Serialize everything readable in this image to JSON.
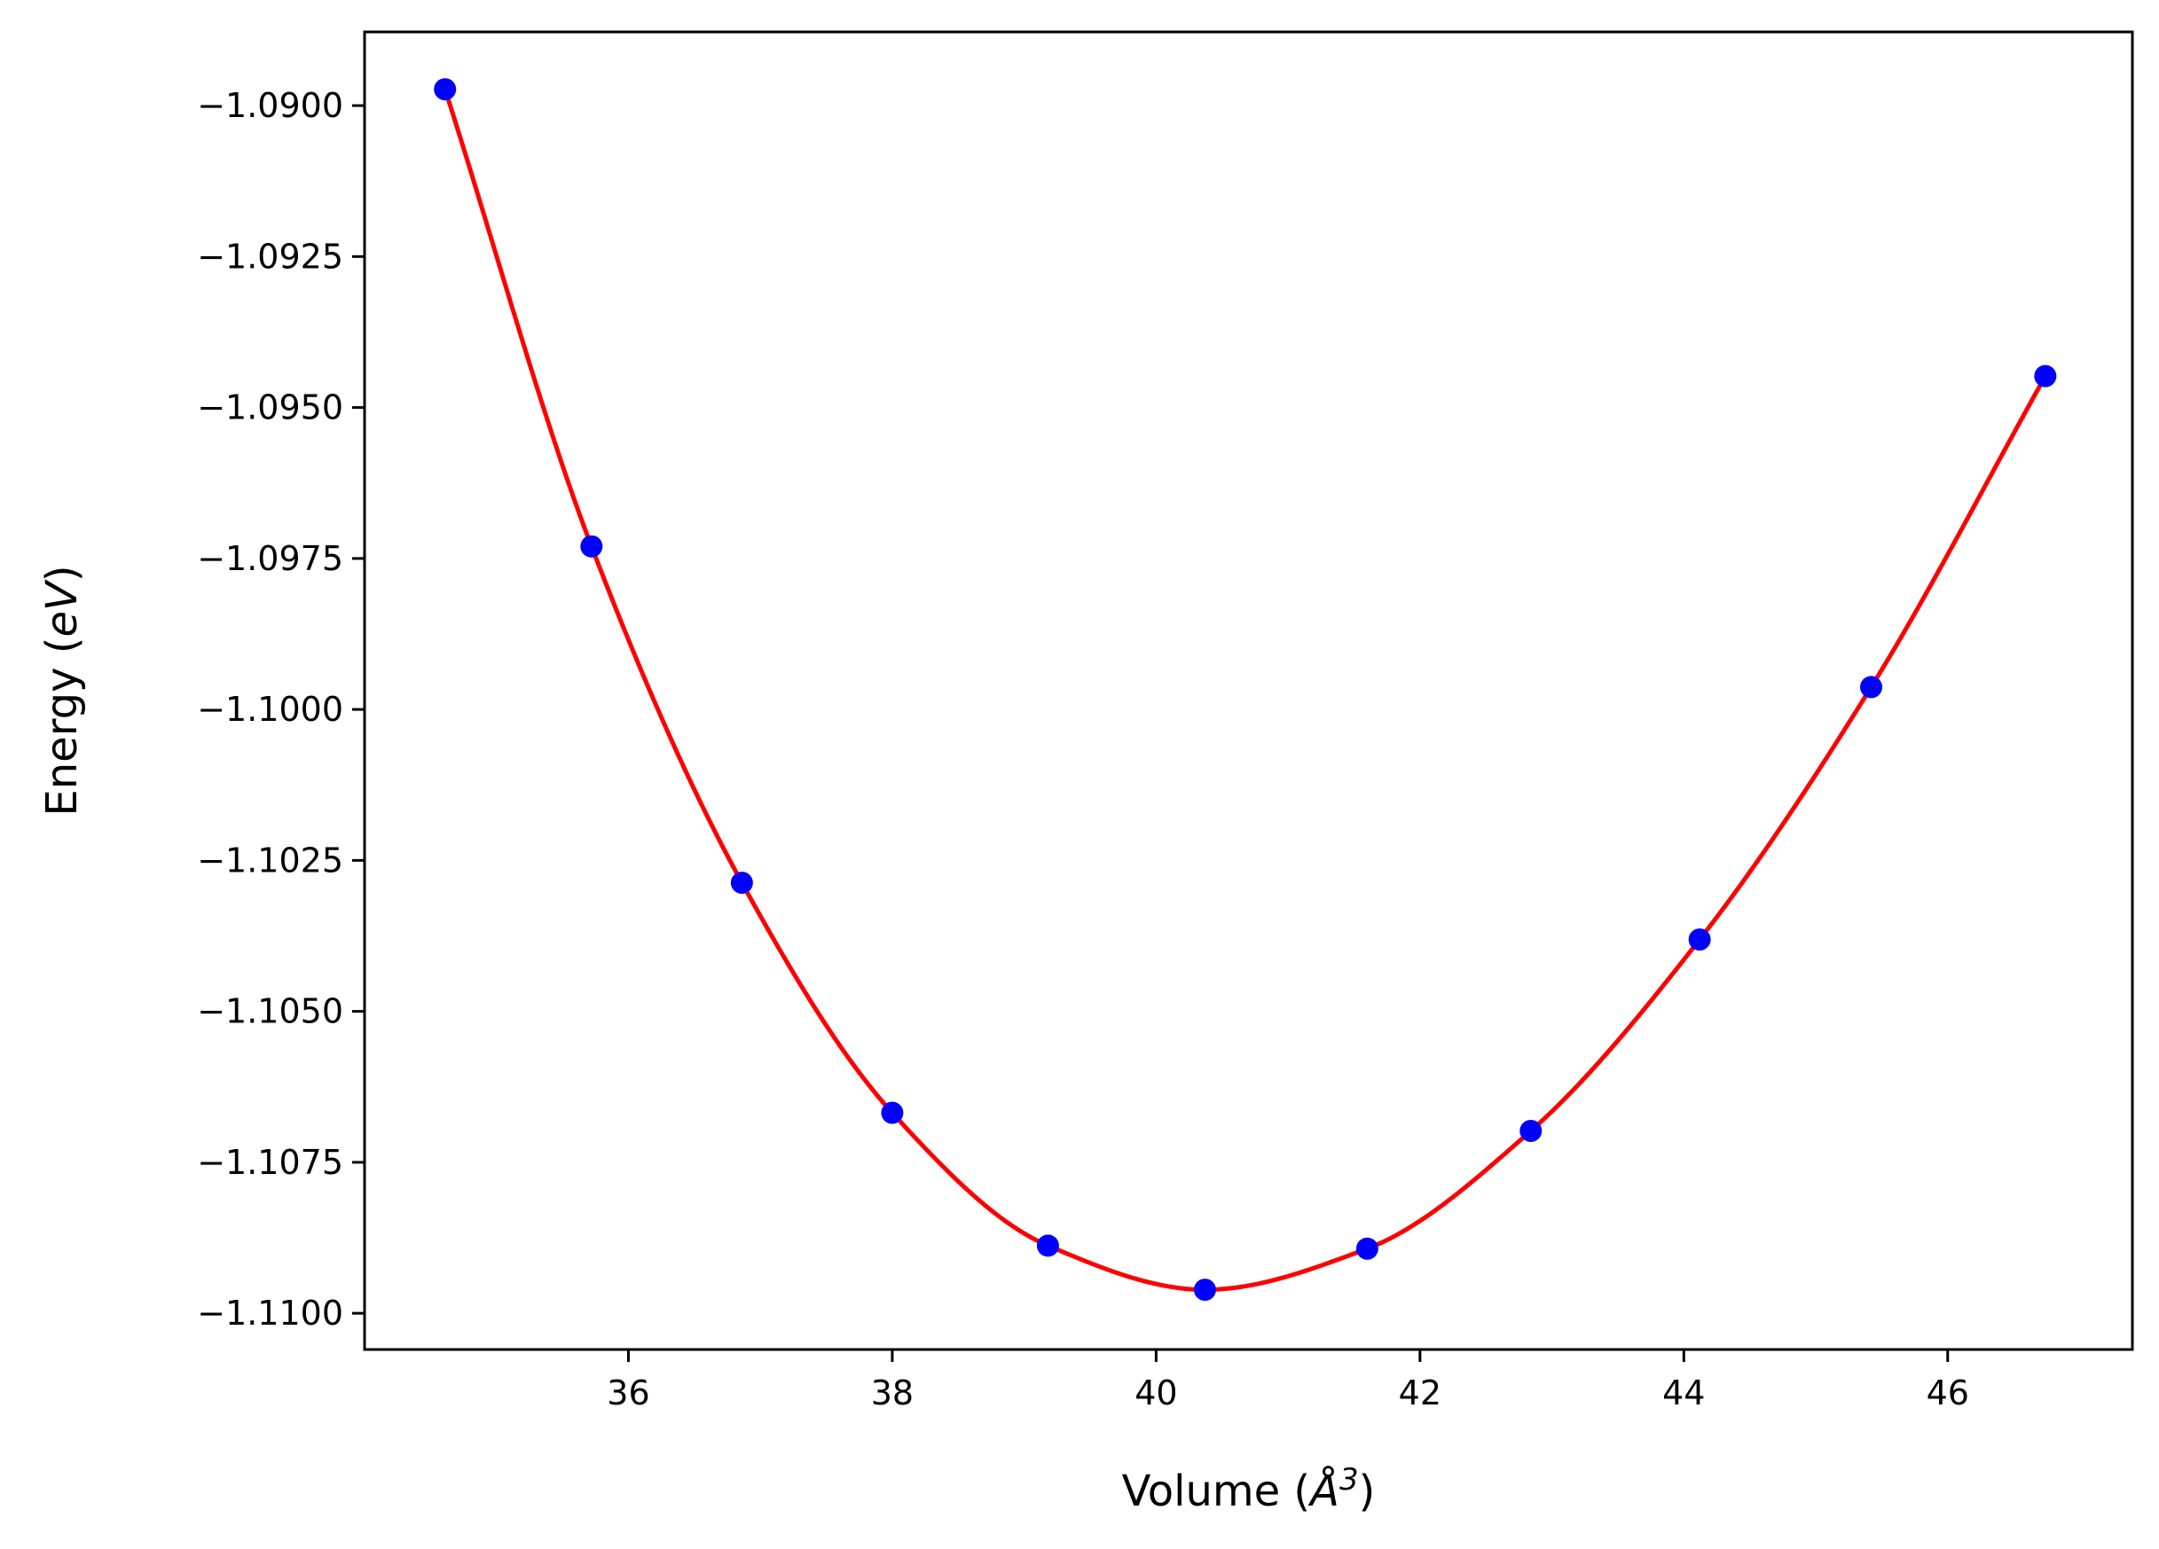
{
  "chart_data": {
    "type": "scatter",
    "title": "",
    "xlabel_main": "Volume (",
    "xlabel_symbol": "Å",
    "xlabel_exponent": "3",
    "xlabel_close": ")",
    "ylabel_main": "Energy (",
    "ylabel_unit": "eV",
    "ylabel_close": ")",
    "xlim": [
      34.0,
      47.4
    ],
    "ylim": [
      -1.1106,
      -1.08878
    ],
    "xticks": [
      36,
      38,
      40,
      42,
      44,
      46
    ],
    "xtick_labels": [
      "36",
      "38",
      "40",
      "42",
      "44",
      "46"
    ],
    "yticks": [
      -1.09,
      -1.0925,
      -1.095,
      -1.0975,
      -1.1,
      -1.1025,
      -1.105,
      -1.1075,
      -1.11
    ],
    "ytick_labels": [
      "−1.0900",
      "−1.0925",
      "−1.0950",
      "−1.0975",
      "−1.1000",
      "−1.1025",
      "−1.1050",
      "−1.1075",
      "−1.1100"
    ],
    "grid": false,
    "colors": {
      "points": "#0000ff",
      "fit": "#ff0000",
      "axes": "#000000"
    },
    "series": [
      {
        "kind": "points",
        "x": [
          34.61,
          35.72,
          36.86,
          38.0,
          39.18,
          40.37,
          41.6,
          42.84,
          44.12,
          45.42,
          46.74
        ],
        "y": [
          -1.08973,
          -1.0973,
          -1.10287,
          -1.10668,
          -1.10888,
          -1.10961,
          -1.10893,
          -1.10698,
          -1.10381,
          -1.09963,
          -1.09448
        ]
      },
      {
        "kind": "fit-curve",
        "x": [
          34.61,
          35.72,
          36.86,
          38.0,
          39.18,
          40.37,
          41.6,
          42.84,
          44.12,
          45.42,
          46.74
        ],
        "y": [
          -1.08973,
          -1.0973,
          -1.10287,
          -1.10668,
          -1.10888,
          -1.10961,
          -1.10893,
          -1.10698,
          -1.10381,
          -1.09963,
          -1.09448
        ]
      }
    ]
  }
}
